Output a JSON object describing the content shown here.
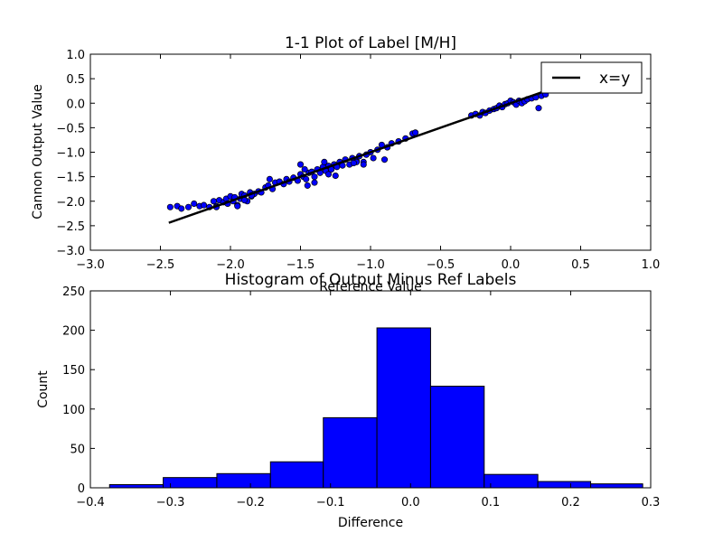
{
  "colors": {
    "marker": "#0000ff",
    "line": "#000000",
    "bar": "#0000ff"
  },
  "chart_data": [
    {
      "type": "scatter",
      "title": "1-1 Plot of Label [M/H]",
      "xlabel": "Reference Value",
      "ylabel": "Cannon Output Value",
      "xlim": [
        -3.0,
        1.0
      ],
      "ylim": [
        -3.0,
        1.0
      ],
      "xticks": [
        "−3.0",
        "−2.5",
        "−2.0",
        "−1.5",
        "−1.0",
        "−0.5",
        "0.0",
        "0.5",
        "1.0"
      ],
      "yticks": [
        "−3.0",
        "−2.5",
        "−2.0",
        "−1.5",
        "−1.0",
        "−0.5",
        "0.0",
        "0.5",
        "1.0"
      ],
      "grid": false,
      "legend": {
        "position": "top-right",
        "entries": [
          "x=y"
        ]
      },
      "line": {
        "name": "x=y",
        "x": [
          -2.44,
          0.31
        ],
        "y": [
          -2.44,
          0.31
        ]
      },
      "series": [
        {
          "x": [
            -2.43,
            -2.38,
            -2.35,
            -2.3,
            -2.26,
            -2.22,
            -2.19,
            -2.15,
            -2.12,
            -2.1,
            -2.08,
            -2.05,
            -2.03,
            -2.02,
            -2.0,
            -1.98,
            -1.97,
            -1.95,
            -1.93,
            -1.92,
            -1.9,
            -1.88,
            -1.86,
            -1.85,
            -1.83,
            -1.8,
            -1.78,
            -1.75,
            -1.73,
            -1.7,
            -1.68,
            -1.65,
            -1.62,
            -1.6,
            -1.58,
            -1.55,
            -1.52,
            -1.5,
            -1.48,
            -1.46,
            -1.44,
            -1.42,
            -1.4,
            -1.38,
            -1.36,
            -1.34,
            -1.32,
            -1.3,
            -1.28,
            -1.26,
            -1.24,
            -1.22,
            -1.2,
            -1.18,
            -1.15,
            -1.13,
            -1.1,
            -1.08,
            -1.05,
            -1.03,
            -1.0,
            -0.98,
            -0.95,
            -0.92,
            -0.88,
            -0.85,
            -0.8,
            -0.75,
            -0.7,
            -0.68,
            -0.28,
            -0.25,
            -0.22,
            -0.2,
            -0.18,
            -0.15,
            -0.12,
            -0.1,
            -0.08,
            -0.06,
            -0.04,
            -0.02,
            0.0,
            0.02,
            0.04,
            0.06,
            0.08,
            0.1,
            0.12,
            0.15,
            0.18,
            0.2,
            0.22,
            0.25,
            -1.95,
            -1.72,
            -1.5,
            -1.45,
            -1.1,
            -1.4,
            -1.3,
            -2.1,
            -1.9,
            -1.85,
            -1.25,
            -1.05,
            -0.9,
            -1.12,
            -1.47,
            -1.33
          ],
          "y": [
            -2.12,
            -2.1,
            -2.15,
            -2.12,
            -2.05,
            -2.1,
            -2.08,
            -2.12,
            -2.0,
            -2.1,
            -1.98,
            -2.02,
            -1.95,
            -2.05,
            -1.9,
            -2.0,
            -1.92,
            -2.08,
            -1.95,
            -1.85,
            -1.88,
            -2.0,
            -1.82,
            -1.9,
            -1.85,
            -1.8,
            -1.82,
            -1.72,
            -1.68,
            -1.75,
            -1.62,
            -1.6,
            -1.65,
            -1.55,
            -1.6,
            -1.52,
            -1.58,
            -1.45,
            -1.5,
            -1.55,
            -1.42,
            -1.4,
            -1.5,
            -1.35,
            -1.42,
            -1.3,
            -1.38,
            -1.28,
            -1.35,
            -1.25,
            -1.3,
            -1.2,
            -1.27,
            -1.15,
            -1.25,
            -1.12,
            -1.18,
            -1.08,
            -1.2,
            -1.05,
            -1.0,
            -1.12,
            -0.95,
            -0.85,
            -0.9,
            -0.82,
            -0.78,
            -0.72,
            -0.62,
            -0.6,
            -0.25,
            -0.22,
            -0.25,
            -0.18,
            -0.2,
            -0.15,
            -0.12,
            -0.1,
            -0.05,
            -0.08,
            -0.02,
            0.0,
            0.05,
            0.02,
            -0.03,
            0.05,
            0.0,
            0.04,
            0.08,
            0.1,
            0.12,
            -0.1,
            0.15,
            0.18,
            -2.1,
            -1.55,
            -1.25,
            -1.68,
            -1.2,
            -1.62,
            -1.45,
            -2.12,
            -1.98,
            -1.88,
            -1.48,
            -1.25,
            -1.15,
            -1.22,
            -1.35,
            -1.2
          ]
        }
      ]
    },
    {
      "type": "bar",
      "title": "Histogram of Output Minus Ref Labels",
      "xlabel": "Difference",
      "ylabel": "Count",
      "xlim": [
        -0.4,
        0.3
      ],
      "ylim": [
        0,
        250
      ],
      "xticks": [
        "−0.4",
        "−0.3",
        "−0.2",
        "−0.1",
        "0.0",
        "0.1",
        "0.2",
        "0.3"
      ],
      "yticks": [
        "0",
        "50",
        "100",
        "150",
        "200",
        "250"
      ],
      "grid": false,
      "bin_edges": [
        -0.376,
        -0.309,
        -0.242,
        -0.175,
        -0.109,
        -0.042,
        0.025,
        0.092,
        0.159,
        0.225,
        0.29
      ],
      "values": [
        4,
        13,
        18,
        33,
        89,
        203,
        129,
        17,
        8,
        5
      ]
    }
  ]
}
